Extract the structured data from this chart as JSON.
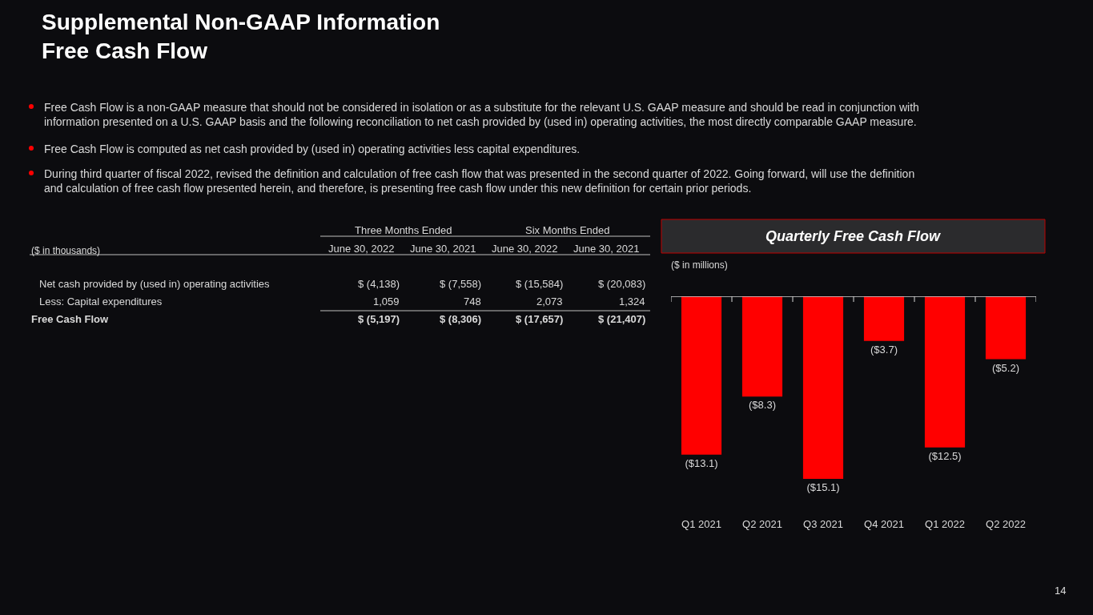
{
  "chart_data": [
    {
      "type": "other",
      "title": "Supplemental Non-GAAP Information\nFree Cash Flow",
      "annotations": [
        "Free Cash Flow is a non-GAAP measure that should not be considered in isolation or as a substitute for the relevant U.S. GAAP measure and should be read in conjunction with information presented on a U.S. GAAP basis and the following reconciliation to net cash provided by (used in) operating activities, the most directly comparable GAAP measure.",
        "Free Cash Flow is computed as net cash provided by (used in) operating activities less capital expenditures.",
        "During third quarter of fiscal 2022, revised the definition and calculation of free cash flow that was presented in the second quarter of 2022. Going forward, will use the definition and calculation of free cash flow presented herein, and therefore, is presenting free cash flow under this new definition for certain prior periods.",
        "Three Months Ended",
        "Six Months Ended",
        "($ in thousands)",
        "June 30, 2022",
        "June 30, 2021",
        "June 30, 2022",
        "June 30, 2021",
        "Net cash provided by (used in) operating activities",
        "$ (4,138)",
        "$ (7,558)",
        "$ (15,584)",
        "$ (20,083)",
        "Less: Capital expenditures",
        "1,059",
        "748",
        "2,073",
        "1,324",
        "Free Cash Flow",
        "$ (5,197)",
        "$ (8,306)",
        "$ (17,657)",
        "$ (21,407)",
        "14"
      ]
    },
    {
      "type": "bar",
      "title": "Quarterly Free Cash Flow",
      "ylabel": "($ in millions)",
      "categories": [
        "Q1 2021",
        "Q2 2021",
        "Q3 2021",
        "Q4 2021",
        "Q1 2022",
        "Q2 2022"
      ],
      "values": [
        -13.1,
        -8.3,
        -15.1,
        -3.7,
        -12.5,
        -5.2
      ],
      "value_labels": [
        "($13.1)",
        "($8.3)",
        "($15.1)",
        "($3.7)",
        "($12.5)",
        "($5.2)"
      ],
      "color": "#ff0000"
    }
  ]
}
